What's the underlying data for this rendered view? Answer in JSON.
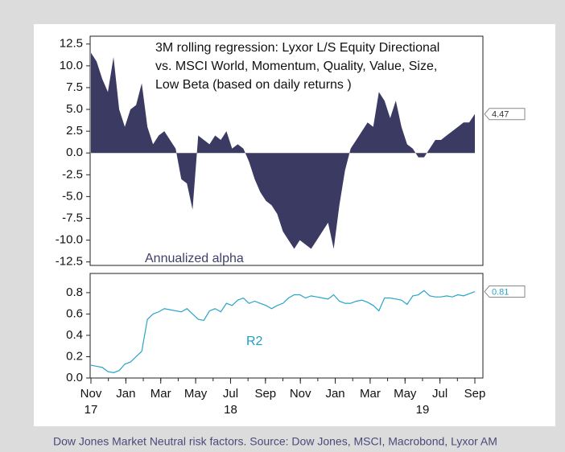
{
  "chart_data": [
    {
      "type": "area",
      "title": [
        "3M rolling regression: Lyxor L/S Equity Directional",
        "vs. MSCI World, Momentum, Quality, Value, Size,",
        "Low Beta (based on daily returns )"
      ],
      "annotation": "Annualized alpha",
      "source": "Dow Jones Market Neutral risk factors. Source: Dow Jones, MSCI, Macrobond, Lyxor AM",
      "xlim": [
        "2017-11",
        "2019-09"
      ],
      "ylim": [
        -12.9,
        13.4
      ],
      "yticks": [
        {
          "value": -12.5,
          "label": "-12.5"
        },
        {
          "value": -10,
          "label": "-10.0"
        },
        {
          "value": -7.5,
          "label": "-7.5"
        },
        {
          "value": -5,
          "label": "-5.0"
        },
        {
          "value": -2.5,
          "label": "-2.5"
        },
        {
          "value": 0,
          "label": "0.0"
        },
        {
          "value": 2.5,
          "label": "2.5"
        },
        {
          "value": 5,
          "label": "5.0"
        },
        {
          "value": 7.5,
          "label": "7.5"
        },
        {
          "value": 10,
          "label": "10.0"
        },
        {
          "value": 12.5,
          "label": "12.5"
        }
      ],
      "series": [
        {
          "name": "Annualized alpha",
          "color": "#3b3a63",
          "values": [
            11.5,
            10.5,
            8.5,
            7,
            11,
            5,
            3,
            5,
            5.5,
            8,
            3,
            1,
            2,
            2.5,
            1.5,
            0.5,
            -3,
            -3.5,
            -6.5,
            2,
            1.5,
            1,
            2,
            1.5,
            2.5,
            0.5,
            1,
            0.5,
            -1,
            -3,
            -4.5,
            -5.5,
            -6,
            -7,
            -9,
            -10,
            -11,
            -10,
            -10.5,
            -11,
            -10,
            -9,
            -8,
            -11,
            -6,
            -2,
            0.5,
            1.5,
            2.5,
            3.5,
            3,
            7,
            6,
            4,
            6,
            3,
            1,
            0.5,
            -0.5,
            -0.5,
            0.5,
            1.5,
            1.5,
            2,
            2.5,
            3,
            3.5,
            3.5,
            4.47
          ]
        }
      ]
    },
    {
      "type": "line",
      "annotation": "R2",
      "xlim": [
        "2017-11",
        "2019-09"
      ],
      "ylim": [
        0,
        0.98
      ],
      "yticks": [
        {
          "value": 0,
          "label": "0.0"
        },
        0.2,
        0.4,
        0.6,
        0.8
      ],
      "xticks": [
        {
          "value": "2017-11",
          "label": "Nov"
        },
        {
          "value": "2018-01",
          "label": "Jan"
        },
        {
          "value": "2018-03",
          "label": "Mar"
        },
        {
          "value": "2018-05",
          "label": "May"
        },
        {
          "value": "2018-07",
          "label": "Jul"
        },
        {
          "value": "2018-09",
          "label": "Sep"
        },
        {
          "value": "2018-11",
          "label": "Nov"
        },
        {
          "value": "2019-01",
          "label": "Jan"
        },
        {
          "value": "2019-03",
          "label": "Mar"
        },
        {
          "value": "2019-05",
          "label": "May"
        },
        {
          "value": "2019-07",
          "label": "Jul"
        },
        {
          "value": "2019-09",
          "label": "Sep"
        }
      ],
      "xyears": [
        {
          "value": "2017-11",
          "label": "17"
        },
        {
          "value": "2018-07",
          "label": "18"
        },
        {
          "value": "2019-06",
          "label": "19"
        }
      ],
      "series": [
        {
          "name": "R2",
          "color": "#29a3c9",
          "values": [
            0.12,
            0.11,
            0.1,
            0.06,
            0.05,
            0.07,
            0.13,
            0.15,
            0.2,
            0.25,
            0.55,
            0.6,
            0.62,
            0.65,
            0.64,
            0.63,
            0.62,
            0.65,
            0.6,
            0.55,
            0.54,
            0.63,
            0.65,
            0.62,
            0.7,
            0.68,
            0.73,
            0.75,
            0.7,
            0.72,
            0.7,
            0.68,
            0.65,
            0.68,
            0.7,
            0.75,
            0.78,
            0.78,
            0.75,
            0.77,
            0.76,
            0.75,
            0.74,
            0.78,
            0.72,
            0.7,
            0.7,
            0.72,
            0.73,
            0.71,
            0.68,
            0.63,
            0.75,
            0.75,
            0.74,
            0.73,
            0.69,
            0.77,
            0.78,
            0.82,
            0.77,
            0.76,
            0.76,
            0.77,
            0.76,
            0.78,
            0.77,
            0.79,
            0.81
          ]
        }
      ]
    }
  ]
}
